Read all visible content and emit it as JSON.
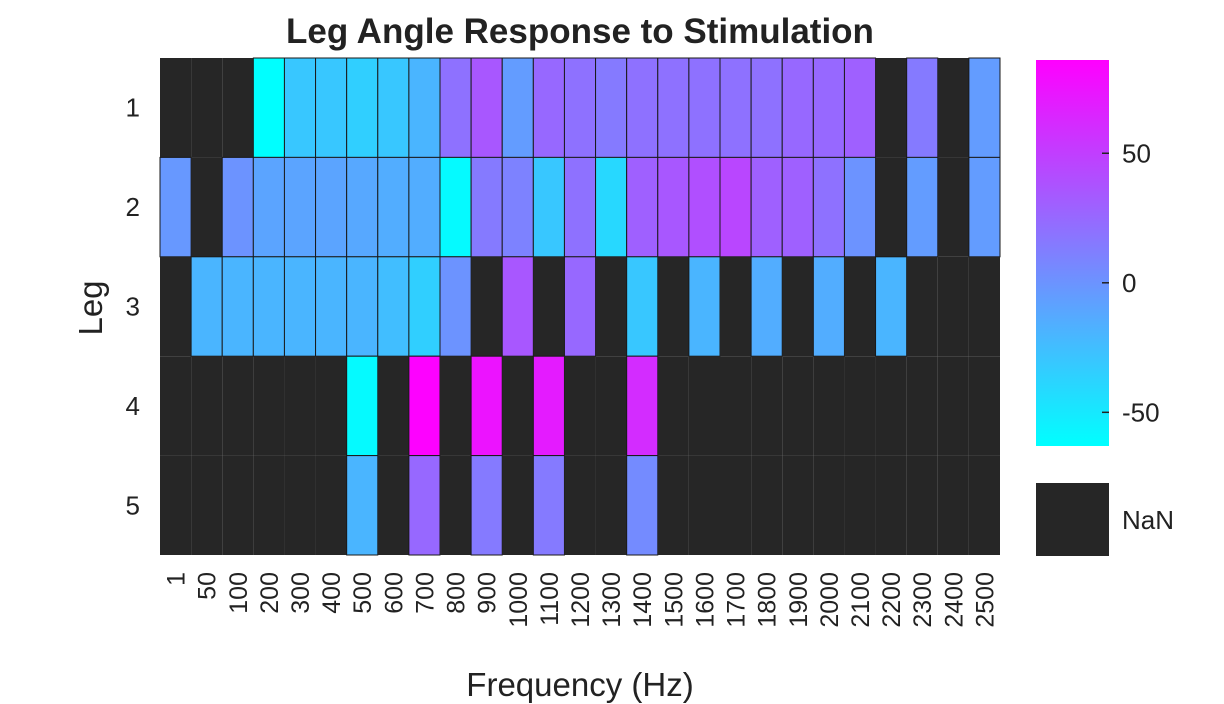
{
  "chart_data": {
    "type": "heatmap",
    "title": "Leg Angle Response to Stimulation",
    "xlabel": "Frequency (Hz)",
    "ylabel": "Leg",
    "x_categories": [
      "1",
      "50",
      "100",
      "200",
      "300",
      "400",
      "500",
      "600",
      "700",
      "800",
      "900",
      "1000",
      "1100",
      "1200",
      "1300",
      "1400",
      "1500",
      "1600",
      "1700",
      "1800",
      "1900",
      "2000",
      "2100",
      "2200",
      "2300",
      "2400",
      "2500"
    ],
    "y_categories": [
      "1",
      "2",
      "3",
      "4",
      "5"
    ],
    "values": [
      [
        null,
        null,
        null,
        -63,
        -30,
        -30,
        -35,
        -30,
        -20,
        20,
        35,
        -5,
        25,
        20,
        15,
        20,
        20,
        20,
        20,
        20,
        25,
        25,
        30,
        null,
        15,
        null,
        -5
      ],
      [
        -3,
        null,
        0,
        -10,
        -10,
        -10,
        -12,
        -15,
        -15,
        -60,
        15,
        10,
        -30,
        20,
        -40,
        30,
        35,
        40,
        45,
        30,
        30,
        20,
        0,
        null,
        -5,
        null,
        -5
      ],
      [
        null,
        -20,
        -20,
        -20,
        -20,
        -20,
        -20,
        -25,
        -35,
        0,
        null,
        35,
        null,
        25,
        null,
        -30,
        null,
        -20,
        null,
        -15,
        null,
        -15,
        null,
        -20,
        null,
        null,
        null
      ],
      [
        null,
        null,
        null,
        null,
        null,
        null,
        -60,
        null,
        85,
        null,
        75,
        null,
        70,
        null,
        null,
        60,
        null,
        null,
        null,
        null,
        null,
        null,
        null,
        null,
        null,
        null,
        null
      ],
      [
        null,
        null,
        null,
        null,
        null,
        null,
        -20,
        null,
        25,
        null,
        15,
        null,
        15,
        null,
        null,
        5,
        null,
        null,
        null,
        null,
        null,
        null,
        null,
        null,
        null,
        null,
        null
      ]
    ],
    "colorbar": {
      "range": [
        -63,
        86
      ],
      "ticks": [
        -50,
        0,
        50
      ],
      "tick_labels": [
        "-50",
        "0",
        "50"
      ],
      "low_color": "#00ffff",
      "high_color": "#ff00ff"
    },
    "nan_label": "NaN",
    "nan_color": "#262626",
    "grid": false
  }
}
